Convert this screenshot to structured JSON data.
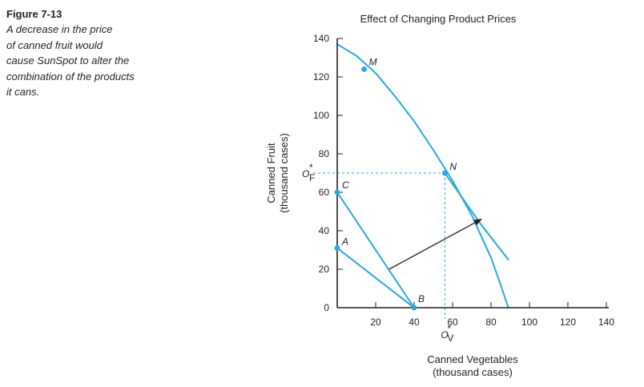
{
  "caption": {
    "figure_number": "Figure 7-13",
    "lines": [
      "A decrease in the price",
      "of canned fruit would",
      "cause SunSpot to alter the",
      "combination of the products",
      "it cans."
    ]
  },
  "chart_data": {
    "type": "line",
    "title": "Effect of Changing Product Prices",
    "xlabel": "Canned Vegetables",
    "xlabel_unit": "(thousand cases)",
    "ylabel": "Canned Fruit",
    "ylabel_unit": "(thousand cases)",
    "xlim": [
      0,
      140
    ],
    "ylim": [
      0,
      140
    ],
    "x_ticks": [
      20,
      40,
      60,
      80,
      100,
      120,
      140
    ],
    "y_ticks": [
      0,
      20,
      40,
      60,
      80,
      100,
      120,
      140
    ],
    "colors": {
      "curve": "#29a8e0",
      "axis": "#231f20",
      "arrow": "#231f20"
    },
    "series": [
      {
        "points": [
          [
            0,
            137
          ],
          [
            10,
            131
          ],
          [
            20,
            122
          ],
          [
            30,
            110
          ],
          [
            40,
            97
          ],
          [
            50,
            82
          ],
          [
            60,
            66
          ],
          [
            70,
            48
          ],
          [
            80,
            26
          ],
          [
            85,
            12
          ],
          [
            89,
            0
          ]
        ]
      },
      {
        "points": [
          [
            56,
            70
          ],
          [
            75,
            43
          ],
          [
            89,
            25
          ]
        ]
      },
      {
        "points": [
          [
            0,
            60
          ],
          [
            40,
            0
          ]
        ]
      },
      {
        "points": [
          [
            0,
            31
          ],
          [
            40,
            0
          ]
        ]
      }
    ],
    "points": [
      {
        "label": "M",
        "x": 14,
        "y": 124
      },
      {
        "label": "N",
        "x": 56,
        "y": 70
      },
      {
        "label": "C",
        "x": 0,
        "y": 60
      },
      {
        "label": "A",
        "x": 0,
        "y": 31
      },
      {
        "label": "B",
        "x": 40,
        "y": 0
      }
    ],
    "arrow": {
      "from": [
        27,
        20
      ],
      "to": [
        75,
        46
      ]
    },
    "reference": {
      "x_value": 56,
      "x_label": "O",
      "y_value": 70,
      "y_label": "O"
    }
  }
}
